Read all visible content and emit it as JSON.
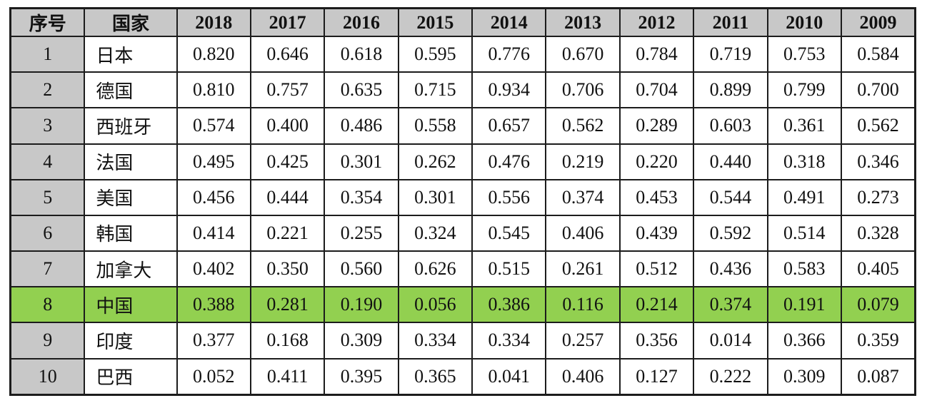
{
  "chart_data": {
    "type": "table",
    "columns": [
      "序号",
      "国家",
      "2018",
      "2017",
      "2016",
      "2015",
      "2014",
      "2013",
      "2012",
      "2011",
      "2010",
      "2009"
    ],
    "rows": [
      {
        "index": "1",
        "country": "日本",
        "highlight": false,
        "values": [
          "0.820",
          "0.646",
          "0.618",
          "0.595",
          "0.776",
          "0.670",
          "0.784",
          "0.719",
          "0.753",
          "0.584"
        ]
      },
      {
        "index": "2",
        "country": "德国",
        "highlight": false,
        "values": [
          "0.810",
          "0.757",
          "0.635",
          "0.715",
          "0.934",
          "0.706",
          "0.704",
          "0.899",
          "0.799",
          "0.700"
        ]
      },
      {
        "index": "3",
        "country": "西班牙",
        "highlight": false,
        "values": [
          "0.574",
          "0.400",
          "0.486",
          "0.558",
          "0.657",
          "0.562",
          "0.289",
          "0.603",
          "0.361",
          "0.562"
        ]
      },
      {
        "index": "4",
        "country": "法国",
        "highlight": false,
        "values": [
          "0.495",
          "0.425",
          "0.301",
          "0.262",
          "0.476",
          "0.219",
          "0.220",
          "0.440",
          "0.318",
          "0.346"
        ]
      },
      {
        "index": "5",
        "country": "美国",
        "highlight": false,
        "values": [
          "0.456",
          "0.444",
          "0.354",
          "0.301",
          "0.556",
          "0.374",
          "0.453",
          "0.544",
          "0.491",
          "0.273"
        ]
      },
      {
        "index": "6",
        "country": "韩国",
        "highlight": false,
        "values": [
          "0.414",
          "0.221",
          "0.255",
          "0.324",
          "0.545",
          "0.406",
          "0.439",
          "0.592",
          "0.514",
          "0.328"
        ]
      },
      {
        "index": "7",
        "country": "加拿大",
        "highlight": false,
        "values": [
          "0.402",
          "0.350",
          "0.560",
          "0.626",
          "0.515",
          "0.261",
          "0.512",
          "0.436",
          "0.583",
          "0.405"
        ]
      },
      {
        "index": "8",
        "country": "中国",
        "highlight": true,
        "values": [
          "0.388",
          "0.281",
          "0.190",
          "0.056",
          "0.386",
          "0.116",
          "0.214",
          "0.374",
          "0.191",
          "0.079"
        ]
      },
      {
        "index": "9",
        "country": "印度",
        "highlight": false,
        "values": [
          "0.377",
          "0.168",
          "0.309",
          "0.334",
          "0.334",
          "0.257",
          "0.356",
          "0.014",
          "0.366",
          "0.359"
        ]
      },
      {
        "index": "10",
        "country": "巴西",
        "highlight": false,
        "values": [
          "0.052",
          "0.411",
          "0.395",
          "0.365",
          "0.041",
          "0.406",
          "0.127",
          "0.222",
          "0.309",
          "0.087"
        ]
      }
    ],
    "highlighted_row": {
      "index": "8",
      "country": "中国"
    },
    "value_range": [
      0,
      1
    ],
    "notes_layout": {
      "grid": "on",
      "header_row_shaded": true,
      "index_column_shaded": true
    }
  },
  "colors": {
    "header_bg": "#c8c8c8",
    "index_col_bg": "#c8c8c8",
    "highlight_bg": "#92d050",
    "border": "#1c1c1c",
    "background": "#ffffff",
    "text": "#111111"
  }
}
